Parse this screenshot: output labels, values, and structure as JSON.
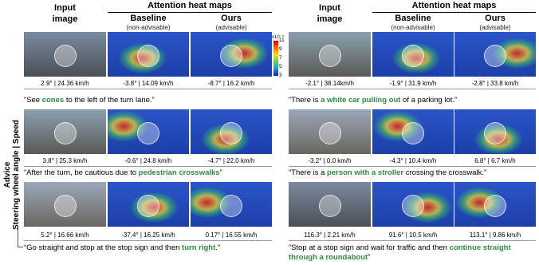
{
  "panels": [
    {
      "header": {
        "input": [
          "Input",
          "image"
        ],
        "group": "Attention heat maps",
        "baseline": "Baseline",
        "baseline_note": "(non-advisable)",
        "ours": "Ours",
        "ours_note": "(advisable)"
      },
      "rows": [
        {
          "captions": [
            "2.9° | 24.36 km/h",
            "-3.8° | 14.09 km/h",
            "-8.7° | 16.2 km/h"
          ],
          "advice": [
            {
              "text": "“See "
            },
            {
              "text": "cones",
              "emphasis": true
            },
            {
              "text": " to the left of the turn lane.”"
            }
          ]
        },
        {
          "captions": [
            "3.8° | 25.3 km/h",
            "-0.6° | 24.8 km/h",
            "-4.7° | 22.0 km/h"
          ],
          "advice": [
            {
              "text": "“After the turn, be cautious due to "
            },
            {
              "text": "pedestrian crosswalks",
              "emphasis": true
            },
            {
              "text": "”"
            }
          ]
        },
        {
          "captions": [
            "5.2° | 16.66 km/h",
            "-37.4° | 16.25 km/h",
            "0.17° | 16.55 km/h"
          ],
          "advice": [
            {
              "text": "“Go straight and stop at the stop sign and then "
            },
            {
              "text": "turn right",
              "emphasis": true
            },
            {
              "text": ".”"
            }
          ]
        }
      ]
    },
    {
      "header": {
        "input": [
          "Input",
          "image"
        ],
        "group": "Attention heat maps",
        "baseline": "Baseline",
        "baseline_note": "(non-advisable)",
        "ours": "Ours",
        "ours_note": "(advisable)"
      },
      "rows": [
        {
          "captions": [
            "-2.1° | 38.14km/h",
            "-1.9° | 31.9 km/h",
            "-2.8° | 33.8 km/h"
          ],
          "advice": [
            {
              "text": "“There is "
            },
            {
              "text": "a white car pulling out",
              "emphasis": true
            },
            {
              "text": " of a parking lot.”"
            }
          ]
        },
        {
          "captions": [
            "-3.2° | 0.0 km/h",
            "-4.3° | 10.4 km/h",
            "6.8° | 6.7 km/h"
          ],
          "advice": [
            {
              "text": "“There is a "
            },
            {
              "text": "person with a stroller",
              "emphasis": true
            },
            {
              "text": " crossing the crosswalk.”"
            }
          ]
        },
        {
          "captions": [
            "116.3° | 2.21 km/h",
            "91.6° | 10.5 km/h",
            "113.1° | 9.86 km/h"
          ],
          "advice": [
            {
              "text": "“Stop at a stop sign and wait for traffic and then "
            },
            {
              "text": "continue straight through a roundabout",
              "emphasis": true
            },
            {
              "text": "”"
            }
          ]
        }
      ]
    }
  ],
  "colorbar": {
    "unit": "x10⁻³",
    "ticks": [
      11,
      9,
      7,
      5,
      3
    ]
  },
  "side_label": [
    "Advice",
    "Steering wheel angle | Speed"
  ]
}
